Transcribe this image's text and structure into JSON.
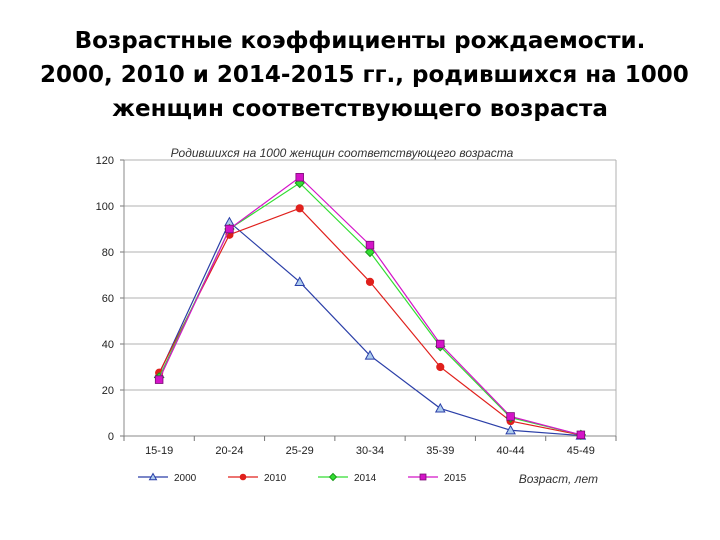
{
  "slide": {
    "title_lines": [
      "Возрастные коэффициенты рождаемости.",
      "2000, 2010 и 2014-2015 гг., родившихся на 1000",
      "женщин соответствующего возраста"
    ]
  },
  "chart_data": {
    "type": "line",
    "title": "Родившихся на 1000 женщин соответствующего возраста",
    "xlabel": "Возраст, лет",
    "ylabel": "",
    "ylim": [
      0,
      120
    ],
    "yticks": [
      0,
      20,
      40,
      60,
      80,
      100,
      120
    ],
    "grid": true,
    "legend_position": "bottom",
    "categories": [
      "15-19",
      "20-24",
      "25-29",
      "30-34",
      "35-39",
      "40-44",
      "45-49"
    ],
    "series": [
      {
        "name": "2000",
        "color": "#2b3fa8",
        "marker": "triangle",
        "values": [
          27,
          93,
          67,
          35,
          12,
          2.5,
          0.2
        ]
      },
      {
        "name": "2010",
        "color": "#e0201c",
        "marker": "circle",
        "values": [
          27.5,
          87.5,
          99,
          67,
          30,
          6.5,
          0.4
        ]
      },
      {
        "name": "2014",
        "color": "#33dd33",
        "marker": "diamond",
        "values": [
          25.5,
          90,
          110,
          80,
          39,
          8,
          0.5
        ]
      },
      {
        "name": "2015",
        "color": "#d414c8",
        "marker": "square",
        "values": [
          24.5,
          90,
          112.5,
          83,
          40,
          8.5,
          0.5
        ]
      }
    ]
  }
}
